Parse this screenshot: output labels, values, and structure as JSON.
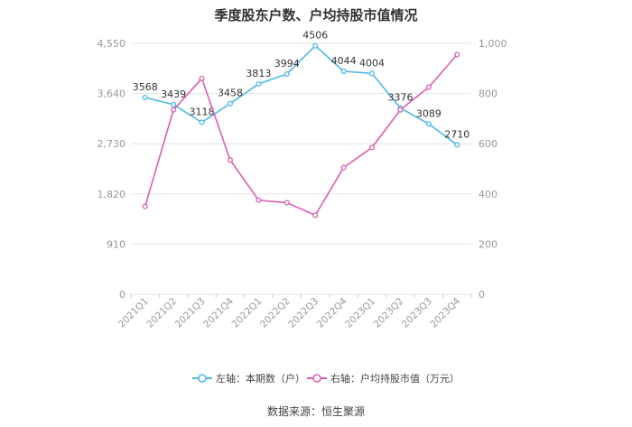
{
  "title": "季度股东户数、户均持股市值情况",
  "source": "数据来源：恒生聚源",
  "legend": {
    "left_series": "左轴：本期数（户）",
    "right_series": "右轴：户均持股市值（万元）"
  },
  "colors": {
    "left_series": "#4DB8E8",
    "right_series": "#D85FB0",
    "axis_text": "#999999",
    "grid": "#E6E6E6"
  },
  "chart_data": {
    "type": "line",
    "title": "季度股东户数、户均持股市值情况",
    "categories": [
      "2021Q1",
      "2021Q2",
      "2021Q3",
      "2021Q4",
      "2022Q1",
      "2022Q2",
      "2022Q3",
      "2022Q4",
      "2023Q1",
      "2023Q2",
      "2023Q3",
      "2023Q4"
    ],
    "left_axis": {
      "ylim": [
        0,
        4550
      ],
      "ticks": [
        "0",
        "910",
        "1,820",
        "2,730",
        "3,640",
        "4,550"
      ]
    },
    "right_axis": {
      "ylim": [
        0,
        1000
      ],
      "ticks": [
        "0",
        "200",
        "400",
        "600",
        "800",
        "1,000"
      ]
    },
    "series": [
      {
        "name": "左轴：本期数（户）",
        "axis": "left",
        "values": [
          3568,
          3439,
          3118,
          3458,
          3813,
          3994,
          4506,
          4044,
          4004,
          3376,
          3089,
          2710
        ],
        "labels": [
          "3568",
          "3439",
          "3118",
          "3458",
          "3813",
          "3994",
          "4506",
          "4044",
          "4004",
          "3376",
          "3089",
          "2710"
        ]
      },
      {
        "name": "右轴：户均持股市值（万元）",
        "axis": "right",
        "values": [
          350,
          735,
          860,
          535,
          375,
          365,
          315,
          505,
          585,
          735,
          825,
          955
        ]
      }
    ],
    "grid": true,
    "legend_position": "bottom"
  }
}
